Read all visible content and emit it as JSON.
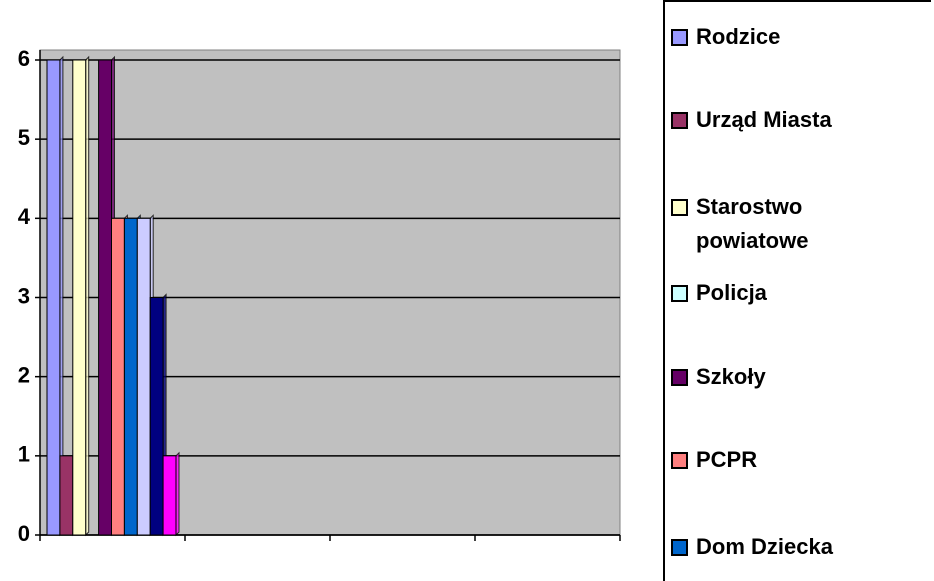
{
  "chart_data": {
    "type": "bar",
    "categories": [
      null,
      null,
      null,
      null
    ],
    "series": [
      {
        "name": "Rodzice",
        "color": "#9999ff",
        "values": [
          6,
          null,
          null,
          null
        ]
      },
      {
        "name": "Urząd Miasta",
        "color": "#993366",
        "values": [
          1,
          null,
          null,
          null
        ]
      },
      {
        "name": "Starostwo powiatowe",
        "color": "#ffffcc",
        "values": [
          6,
          null,
          null,
          null
        ]
      },
      {
        "name": "Policja",
        "color": "#ccffff",
        "values": [
          0,
          null,
          null,
          null
        ]
      },
      {
        "name": "Szkoły",
        "color": "#660066",
        "values": [
          6,
          null,
          null,
          null
        ]
      },
      {
        "name": "PCPR",
        "color": "#ff8080",
        "values": [
          4,
          null,
          null,
          null
        ]
      },
      {
        "name": "Dom Dziecka",
        "color": "#0066cc",
        "values": [
          4,
          null,
          null,
          null
        ]
      },
      {
        "name": null,
        "color": "#ccccff",
        "values": [
          4,
          null,
          null,
          null
        ]
      },
      {
        "name": null,
        "color": "#000080",
        "values": [
          3,
          null,
          null,
          null
        ]
      },
      {
        "name": null,
        "color": "#ff00ff",
        "values": [
          1,
          null,
          null,
          null
        ]
      }
    ],
    "ylim": [
      0,
      6
    ],
    "yticks": [
      0,
      1,
      2,
      3,
      4,
      5,
      6
    ],
    "grid": true,
    "legend": "right"
  }
}
